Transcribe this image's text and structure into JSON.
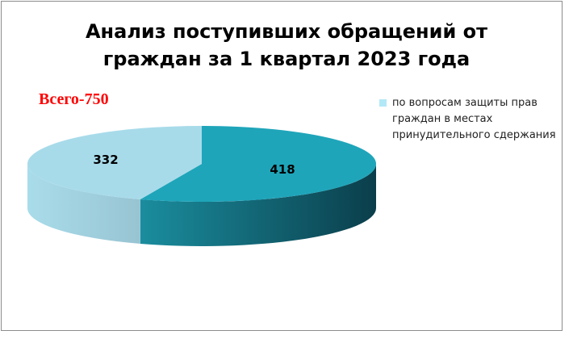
{
  "chart_data": {
    "type": "pie",
    "style": "3d",
    "title": "Анализ поступивших обращений от граждан за 1 квартал 2023 года",
    "title_lines": [
      "Анализ поступивших обращений от",
      "граждан за 1 квартал 2023 года"
    ],
    "annotation": "Всего-750",
    "annotation_color": "#ff0000",
    "legend_placement": "right",
    "slices": [
      {
        "value": 418,
        "label": "418",
        "color": "#1fa5ba",
        "side_from": "#1a8d9e",
        "side_to": "#0b3e4b"
      },
      {
        "value": 332,
        "label": "332",
        "color": "#a8dbea",
        "side_from": "#a9dcea",
        "side_to": "#98c4d2",
        "legend": "по вопросам защиты прав граждан в местах принудительного сдержания",
        "legend_color": "#b3e8f7"
      }
    ],
    "legend": [
      {
        "label_lines": [
          "по вопросам защиты прав",
          "граждан в местах",
          "принудительного сдержания"
        ],
        "color": "#b3e8f7"
      }
    ]
  }
}
